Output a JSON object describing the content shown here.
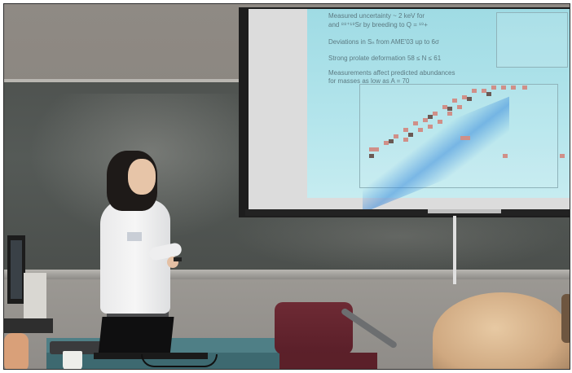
{
  "slide": {
    "line1": "Measured uncertainty ~ 2 keV for",
    "line2": "and ⁸⁸⁺¹⁹Sr by breeding to Q = ¹⁹+",
    "line3": "Deviations in Sₙ from AME'03 up to 6σ",
    "line4": "Strong prolate deformation 58 ≤ N ≤ 61",
    "line5": "Measurements affect predicted abundances",
    "line6": "for masses as low as A = 70"
  }
}
